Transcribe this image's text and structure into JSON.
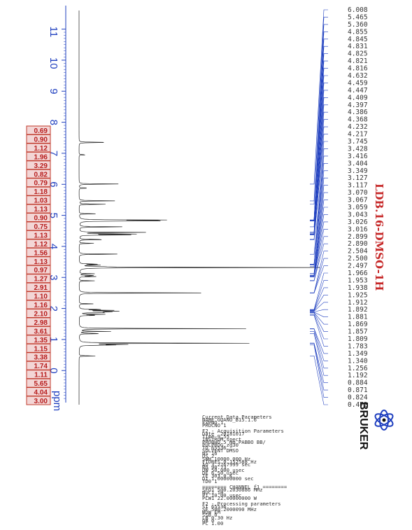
{
  "chart_data": {
    "type": "line",
    "title": "LDB.16-DMSO-1H",
    "xlabel": "ppm",
    "ylabel": "",
    "xlim": [
      -1.1,
      11.6
    ],
    "ticks": [
      "11",
      "10",
      "9",
      "8",
      "7",
      "6",
      "5",
      "4",
      "3",
      "2",
      "1",
      "0"
    ],
    "tick_values": [
      11,
      10,
      9,
      8,
      7,
      6,
      5,
      4,
      3,
      2,
      1,
      0
    ],
    "peaks": [
      {
        "ppm": 7.35,
        "h": 0.14
      },
      {
        "ppm": 6.95,
        "h": 0.03
      },
      {
        "ppm": 6.01,
        "h": 0.16
      },
      {
        "ppm": 5.88,
        "h": 0.04
      },
      {
        "ppm": 5.47,
        "h": 0.15
      },
      {
        "ppm": 5.36,
        "h": 0.1
      },
      {
        "ppm": 5.05,
        "h": 0.06
      },
      {
        "ppm": 4.85,
        "h": 0.3
      },
      {
        "ppm": 4.83,
        "h": 0.26
      },
      {
        "ppm": 4.82,
        "h": 0.22
      },
      {
        "ppm": 4.63,
        "h": 0.2
      },
      {
        "ppm": 4.45,
        "h": 0.26
      },
      {
        "ppm": 4.4,
        "h": 0.24
      },
      {
        "ppm": 4.37,
        "h": 0.18
      },
      {
        "ppm": 4.22,
        "h": 0.12
      },
      {
        "ppm": 4.1,
        "h": 0.06
      },
      {
        "ppm": 3.75,
        "h": 0.18
      },
      {
        "ppm": 3.43,
        "h": 0.08
      },
      {
        "ppm": 3.4,
        "h": 0.07
      },
      {
        "ppm": 3.35,
        "h": 0.08
      },
      {
        "ppm": 3.32,
        "h": 1.0
      },
      {
        "ppm": 3.12,
        "h": 0.06
      },
      {
        "ppm": 3.06,
        "h": 0.07
      },
      {
        "ppm": 3.03,
        "h": 0.07
      },
      {
        "ppm": 2.89,
        "h": 0.06
      },
      {
        "ppm": 2.5,
        "h": 0.47
      },
      {
        "ppm": 2.15,
        "h": 0.06
      },
      {
        "ppm": 1.97,
        "h": 0.1
      },
      {
        "ppm": 1.94,
        "h": 0.12
      },
      {
        "ppm": 1.91,
        "h": 0.14
      },
      {
        "ppm": 1.89,
        "h": 0.13
      },
      {
        "ppm": 1.87,
        "h": 0.11
      },
      {
        "ppm": 1.81,
        "h": 0.1
      },
      {
        "ppm": 1.78,
        "h": 0.08
      },
      {
        "ppm": 1.35,
        "h": 0.62
      },
      {
        "ppm": 1.26,
        "h": 0.12
      },
      {
        "ppm": 1.19,
        "h": 0.1
      },
      {
        "ppm": 0.88,
        "h": 0.72
      },
      {
        "ppm": 0.84,
        "h": 0.16
      },
      {
        "ppm": 0.82,
        "h": 0.14
      },
      {
        "ppm": 0.47,
        "h": 0.06
      }
    ],
    "integrals": [
      "0.69",
      "0.90",
      "1.12",
      "1.96",
      "3.29",
      "0.82",
      "0.79",
      "1.18",
      "1.03",
      "1.13",
      "0.90",
      "0.75",
      "1.13",
      "1.12",
      "1.56",
      "1.13",
      "0.97",
      "1.27",
      "2.91",
      "1.10",
      "1.16",
      "2.10",
      "2.98",
      "3.61",
      "1.35",
      "1.15",
      "3.38",
      "1.74",
      "1.11",
      "5.65",
      "4.04",
      "3.00"
    ],
    "peak_labels": [
      "6.008",
      "5.465",
      "5.360",
      "4.855",
      "4.845",
      "4.831",
      "4.825",
      "4.821",
      "4.816",
      "4.632",
      "4.459",
      "4.447",
      "4.409",
      "4.397",
      "4.386",
      "4.368",
      "4.232",
      "4.217",
      "3.745",
      "3.428",
      "3.416",
      "3.404",
      "3.349",
      "3.127",
      "3.117",
      "3.070",
      "3.067",
      "3.059",
      "3.043",
      "3.026",
      "3.016",
      "2.899",
      "2.890",
      "2.504",
      "2.500",
      "2.497",
      "1.966",
      "1.953",
      "1.938",
      "1.925",
      "1.912",
      "1.892",
      "1.881",
      "1.869",
      "1.857",
      "1.809",
      "1.783",
      "1.349",
      "1.340",
      "1.256",
      "1.192",
      "0.884",
      "0.871",
      "0.824",
      "0.472"
    ]
  },
  "parameters": [
    "Current Data Parameters",
    "NAME        GUANU_B15.1.6",
    "EXPNO                   1",
    "PROCNO                  1",
    "",
    "F2 - Acquisition Parameters",
    "Date_          20181017",
    "Time               9.55",
    "INSTRUM           spect",
    "PROBHD   5 mm PABBO BB/",
    "PULPROG            zg30",
    "TD                65536",
    "SOLVENT            DMSO",
    "NS                   16",
    "DS                    2",
    "SWH         10000.000 Hz",
    "FIDRES       0.152588 Hz",
    "AQ          3.2767999 sec",
    "RG                 90.73",
    "DW               50.000 usec",
    "DE                 6.50 usec",
    "TE                303.0 K",
    "D1          1.00000000 sec",
    "TD0                   1",
    "",
    "======== CHANNEL f1 ========",
    "SFO1        500.2030886 MHz",
    "NUC1                 1H",
    "P1                10.00 usec",
    "PLW1        22.00000000 W",
    "",
    "F2 - Processing parameters",
    "SI                65536",
    "SF          500.2000090 MHz",
    "WDW                  EM",
    "SSB                   0",
    "LB                 0.30 Hz",
    "GB                    0",
    "PC                 1.00"
  ],
  "logo": {
    "name": "BRUKER"
  },
  "colors": {
    "axis": "#1f3fbf",
    "integral": "#c0392b",
    "title": "#c62828",
    "peaklabel_lines": "#1f3fbf",
    "spectrum": "#222222"
  }
}
